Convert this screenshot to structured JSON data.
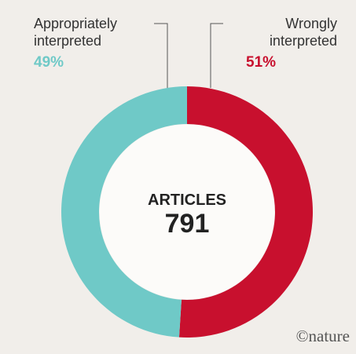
{
  "chart_data": {
    "type": "donut",
    "categories": [
      "Appropriately interpreted",
      "Wrongly interpreted"
    ],
    "values": [
      49,
      51
    ],
    "value_labels": [
      "49%",
      "51%"
    ],
    "colors": [
      "#6fc9c7",
      "#c8102e"
    ],
    "center_label": "ARTICLES",
    "center_value": "791",
    "credit": "©nature"
  }
}
